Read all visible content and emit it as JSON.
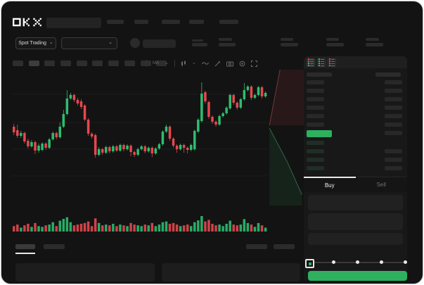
{
  "brand": {
    "logo": "OKX"
  },
  "header": {
    "market_selector_label": "Spot Trading"
  },
  "order_panel": {
    "buy_tab": "Buy",
    "sell_tab": "Sell"
  },
  "order_book": {
    "view_icons": [
      "combined-book-icon",
      "bids-book-icon",
      "asks-book-icon"
    ],
    "ask_rows": 6,
    "bid_rows": 4
  },
  "slider": {
    "positions": [
      0,
      25,
      50,
      75,
      100
    ],
    "value": 0
  },
  "colors": {
    "accent_green": "#2eb05f",
    "candle_up": "#2ebd70",
    "candle_down": "#e5484f",
    "grid": "#1e1e1e",
    "depth_ask_fill": "rgba(226,72,80,0.10)",
    "depth_ask_line": "rgba(226,100,108,0.45)",
    "depth_bid_fill": "rgba(46,176,100,0.10)",
    "depth_bid_line": "rgba(70,200,130,0.45)"
  },
  "chart_data": {
    "type": "candlestick",
    "title": "",
    "xlabel": "",
    "ylabel": "",
    "ylim": [
      0,
      180
    ],
    "grid_y": [
      42,
      80,
      118,
      158
    ],
    "candles": [
      [
        112,
        116,
        100,
        104
      ],
      [
        107,
        115,
        96,
        99
      ],
      [
        99,
        106,
        96,
        103
      ],
      [
        103,
        105,
        88,
        91
      ],
      [
        92,
        95,
        81,
        84
      ],
      [
        84,
        93,
        82,
        90
      ],
      [
        90,
        92,
        73,
        78
      ],
      [
        78,
        88,
        75,
        85
      ],
      [
        79,
        90,
        77,
        88
      ],
      [
        88,
        90,
        79,
        82
      ],
      [
        82,
        96,
        80,
        94
      ],
      [
        94,
        105,
        92,
        103
      ],
      [
        103,
        105,
        94,
        97
      ],
      [
        97,
        118,
        95,
        112
      ],
      [
        112,
        136,
        110,
        130
      ],
      [
        130,
        164,
        128,
        152
      ],
      [
        152,
        160,
        150,
        157
      ],
      [
        157,
        159,
        147,
        150
      ],
      [
        150,
        153,
        142,
        145
      ],
      [
        148,
        151,
        137,
        140
      ],
      [
        142,
        144,
        120,
        122
      ],
      [
        122,
        124,
        99,
        102
      ],
      [
        102,
        104,
        95,
        98
      ],
      [
        100,
        102,
        68,
        72
      ],
      [
        72,
        83,
        70,
        80
      ],
      [
        80,
        82,
        72,
        75
      ],
      [
        75,
        85,
        73,
        83
      ],
      [
        83,
        85,
        74,
        77
      ],
      [
        77,
        86,
        75,
        84
      ],
      [
        84,
        86,
        76,
        78
      ],
      [
        78,
        88,
        76,
        86
      ],
      [
        86,
        88,
        77,
        80
      ],
      [
        80,
        87,
        78,
        85
      ],
      [
        85,
        87,
        70,
        76
      ],
      [
        76,
        78,
        69,
        72
      ],
      [
        72,
        82,
        70,
        80
      ],
      [
        80,
        86,
        78,
        84
      ],
      [
        84,
        86,
        74,
        77
      ],
      [
        77,
        84,
        75,
        82
      ],
      [
        82,
        84,
        69,
        74
      ],
      [
        74,
        83,
        72,
        81
      ],
      [
        81,
        89,
        79,
        87
      ],
      [
        87,
        107,
        85,
        105
      ],
      [
        105,
        115,
        103,
        112
      ],
      [
        112,
        114,
        92,
        95
      ],
      [
        95,
        97,
        82,
        85
      ],
      [
        85,
        87,
        75,
        80
      ],
      [
        80,
        88,
        78,
        86
      ],
      [
        86,
        88,
        75,
        82
      ],
      [
        82,
        84,
        74,
        79
      ],
      [
        79,
        88,
        77,
        86
      ],
      [
        80,
        108,
        78,
        106
      ],
      [
        105,
        124,
        103,
        122
      ],
      [
        120,
        175,
        118,
        159
      ],
      [
        161,
        163,
        145,
        148
      ],
      [
        147,
        149,
        123,
        126
      ],
      [
        126,
        128,
        116,
        119
      ],
      [
        119,
        121,
        112,
        115
      ],
      [
        115,
        129,
        113,
        127
      ],
      [
        127,
        133,
        125,
        131
      ],
      [
        131,
        141,
        129,
        139
      ],
      [
        138,
        159,
        136,
        157
      ],
      [
        157,
        159,
        143,
        146
      ],
      [
        146,
        148,
        136,
        139
      ],
      [
        139,
        153,
        137,
        151
      ],
      [
        151,
        174,
        149,
        164
      ],
      [
        164,
        171,
        162,
        169
      ],
      [
        169,
        171,
        150,
        153
      ],
      [
        153,
        159,
        151,
        157
      ],
      [
        157,
        170,
        155,
        168
      ],
      [
        168,
        170,
        152,
        155
      ],
      [
        155,
        162,
        153,
        160
      ]
    ],
    "volume": [
      35,
      45,
      25,
      40,
      50,
      30,
      55,
      35,
      30,
      40,
      45,
      60,
      35,
      70,
      82,
      92,
      60,
      40,
      45,
      50,
      55,
      65,
      35,
      85,
      55,
      40,
      45,
      40,
      50,
      35,
      45,
      40,
      35,
      55,
      45,
      40,
      35,
      45,
      40,
      55,
      35,
      45,
      60,
      65,
      50,
      55,
      45,
      35,
      40,
      45,
      35,
      60,
      72,
      100,
      65,
      75,
      50,
      40,
      45,
      35,
      50,
      70,
      45,
      40,
      45,
      80,
      55,
      45,
      30,
      55,
      40,
      25
    ],
    "depth": {
      "ask_area": [
        [
          0.06,
          0.41
        ],
        [
          0.35,
          0.0
        ],
        [
          1,
          0.0
        ],
        [
          1,
          0.41
        ]
      ],
      "ask_line": [
        [
          0.06,
          0.41
        ],
        [
          0.35,
          0.0
        ]
      ],
      "bid_area": [
        [
          0.06,
          0.43
        ],
        [
          0.55,
          0.68
        ],
        [
          0.95,
          0.92
        ],
        [
          0.95,
          1
        ],
        [
          0.06,
          1
        ]
      ],
      "bid_line": [
        [
          0.06,
          0.43
        ],
        [
          0.55,
          0.68
        ],
        [
          0.95,
          0.92
        ]
      ]
    }
  }
}
